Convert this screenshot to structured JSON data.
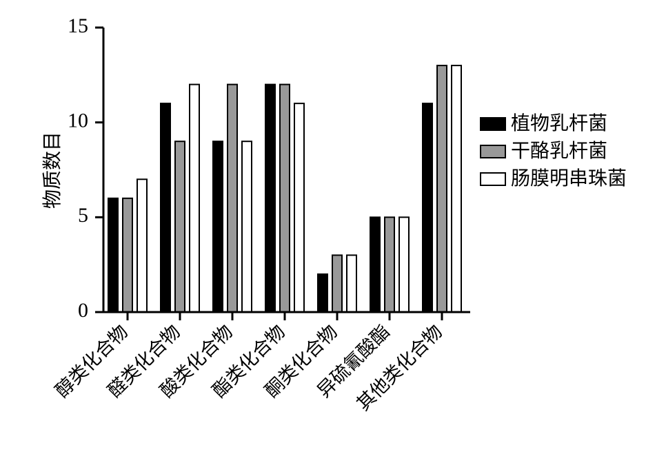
{
  "chart_data": {
    "type": "bar",
    "title": "",
    "xlabel": "",
    "ylabel": "物质数目",
    "ylim": [
      0,
      15
    ],
    "yticks": [
      0,
      5,
      10,
      15
    ],
    "categories": [
      "醇类化合物",
      "醛类化合物",
      "酸类化合物",
      "酯类化合物",
      "酮类化合物",
      "异硫氰酸酯",
      "其他类化合物"
    ],
    "series": [
      {
        "name": "植物乳杆菌",
        "color": "#000000",
        "values": [
          6,
          11,
          9,
          12,
          2,
          5,
          11
        ]
      },
      {
        "name": "干酪乳杆菌",
        "color": "#999999",
        "values": [
          6,
          9,
          12,
          12,
          3,
          5,
          13
        ]
      },
      {
        "name": "肠膜明串珠菌",
        "color": "#ffffff",
        "values": [
          7,
          12,
          9,
          11,
          3,
          5,
          13
        ]
      }
    ],
    "legend_position": "right",
    "grid": false
  }
}
